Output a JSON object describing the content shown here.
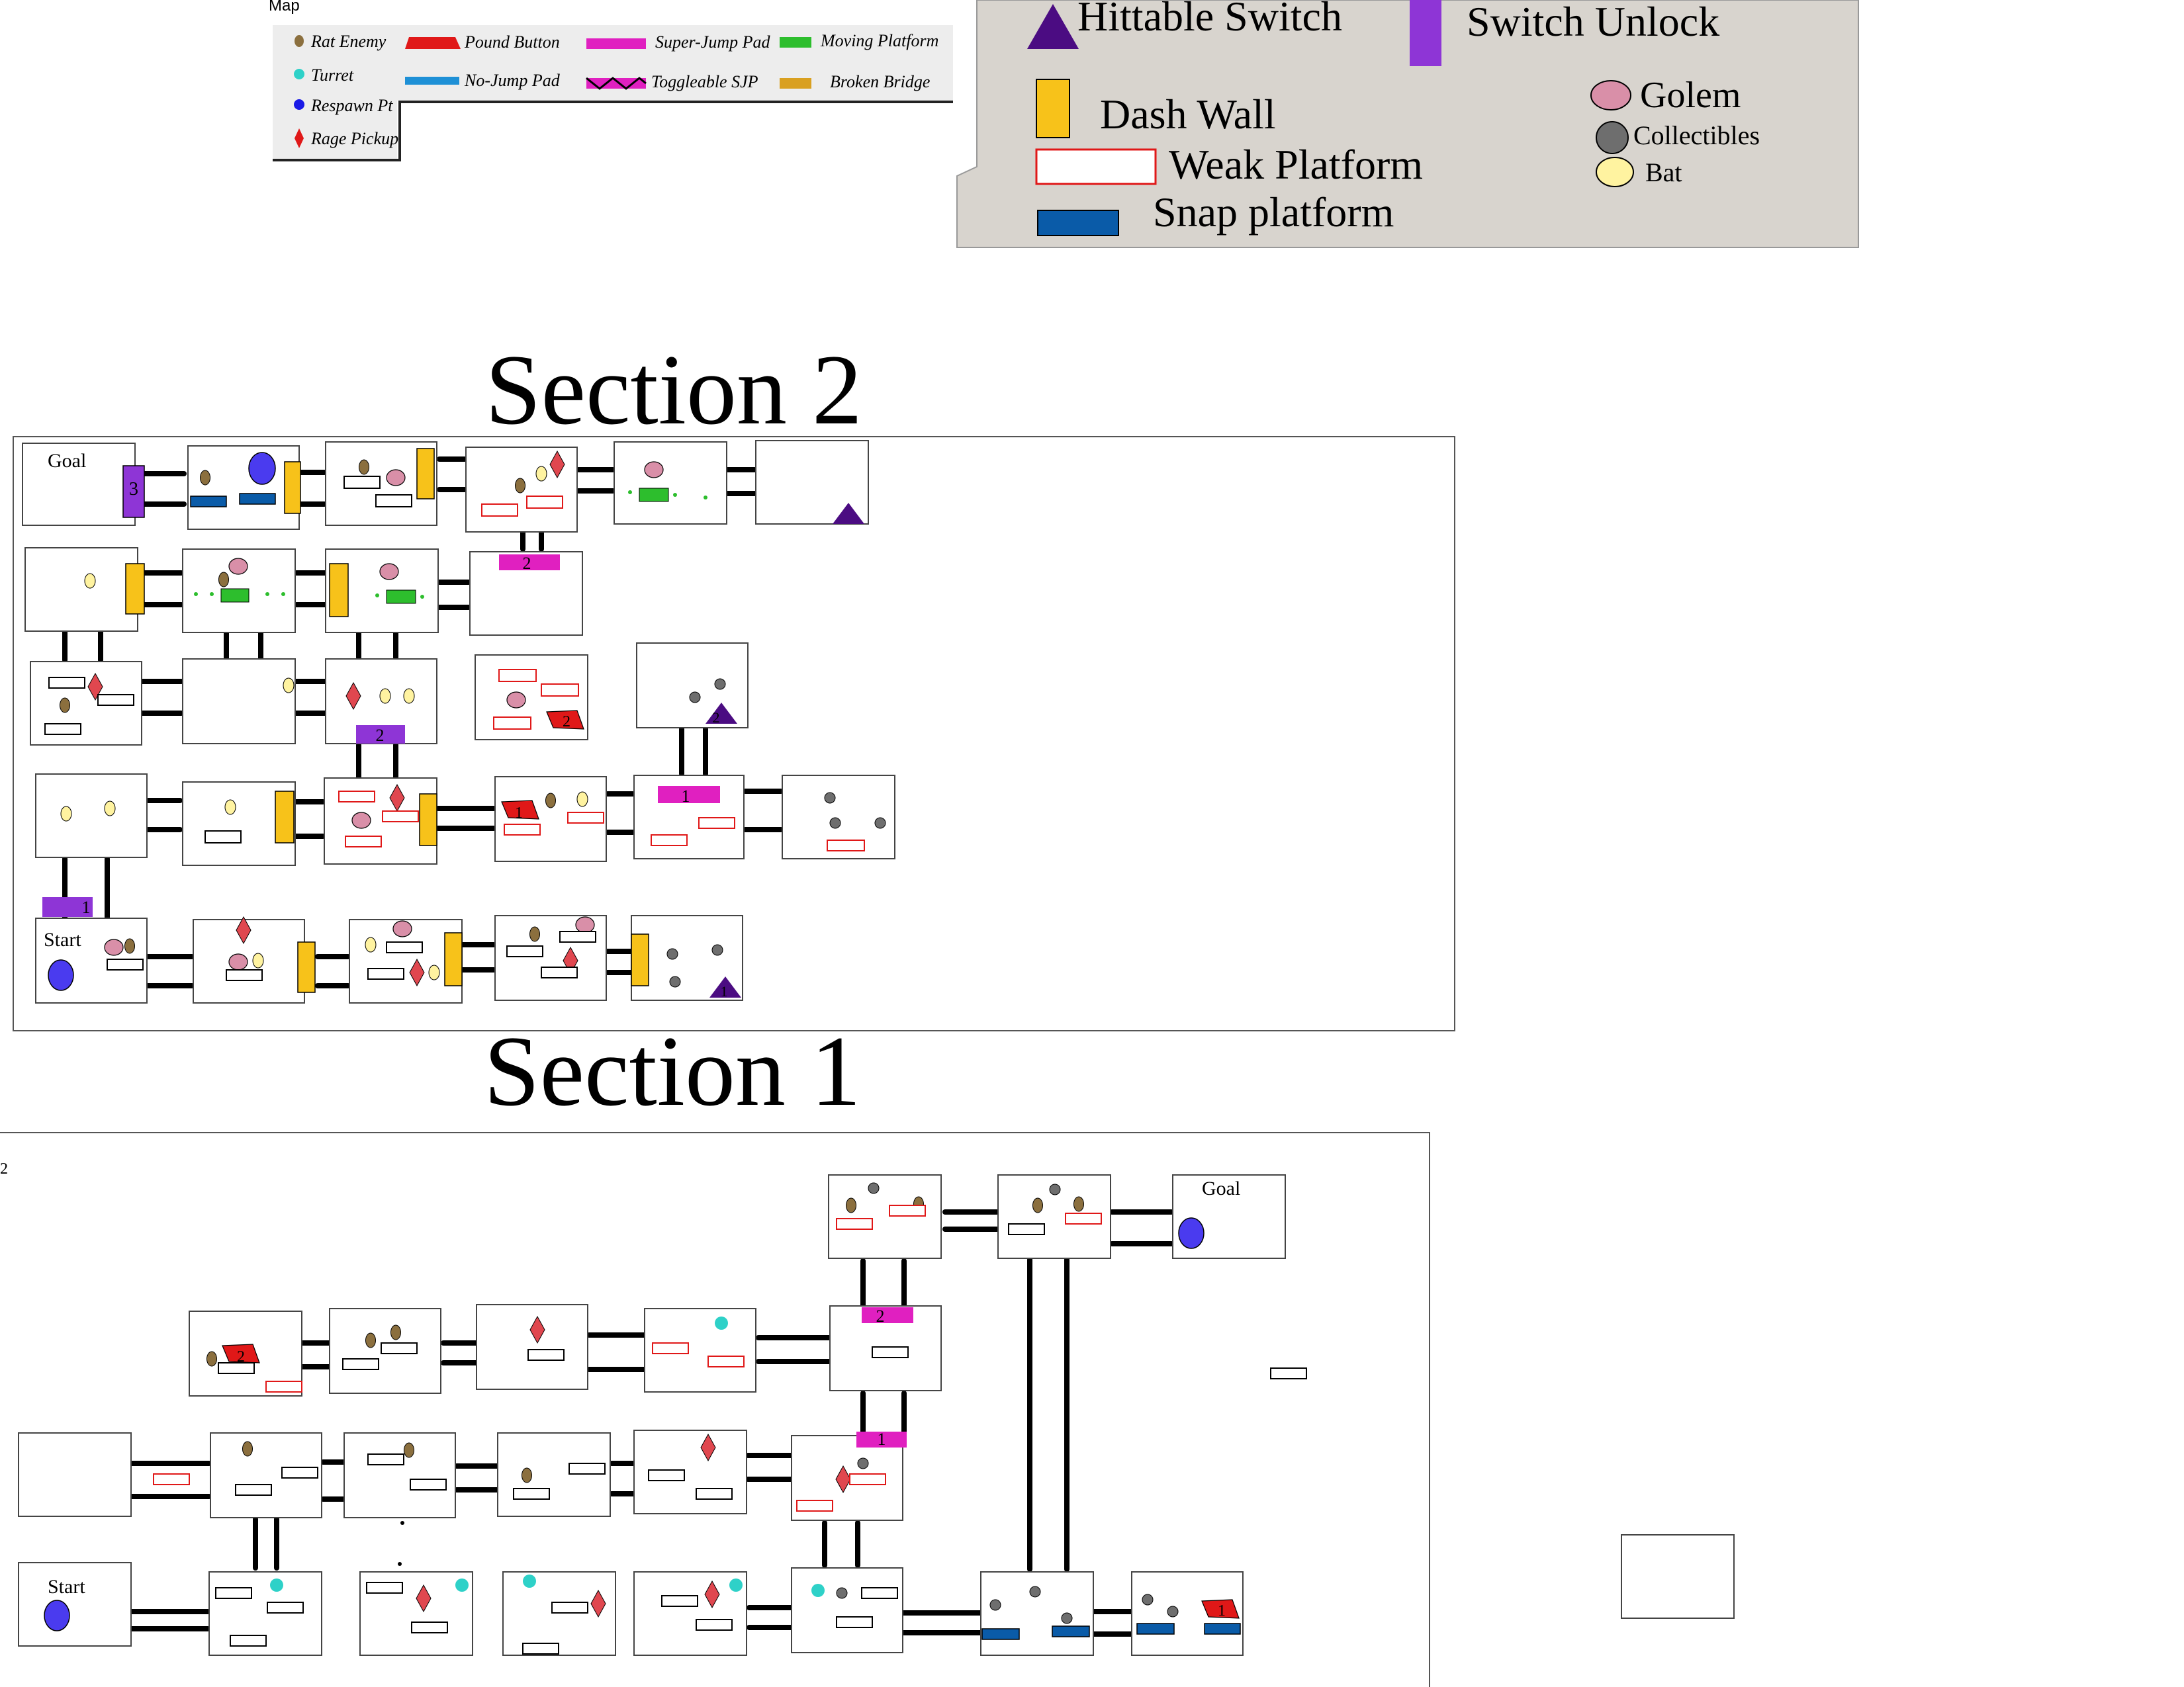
{
  "legend_small": {
    "title": "Map",
    "items": [
      {
        "label": "Rat Enemy",
        "icon": "rat-enemy-icon",
        "color": "#8B6F3E"
      },
      {
        "label": "Turret",
        "icon": "turret-icon",
        "color": "#2ED1C8"
      },
      {
        "label": "Respawn Pt",
        "icon": "respawn-point-icon",
        "color": "#1A1AE6"
      },
      {
        "label": "Rage Pickup",
        "icon": "rage-pickup-icon",
        "color": "#E01818"
      },
      {
        "label": "Pound Button",
        "icon": "pound-button-icon",
        "color": "#E01818"
      },
      {
        "label": "No-Jump Pad",
        "icon": "no-jump-pad-icon",
        "color": "#1E90D6"
      },
      {
        "label": "Super-Jump Pad",
        "icon": "super-jump-pad-icon",
        "color": "#E020C0"
      },
      {
        "label": "Toggleable SJP",
        "icon": "toggleable-sjp-icon",
        "color": "#E020C0"
      },
      {
        "label": "Moving Platform",
        "icon": "moving-platform-icon",
        "color": "#2DBE2D"
      },
      {
        "label": "Broken Bridge",
        "icon": "broken-bridge-icon",
        "color": "#D9A020"
      }
    ]
  },
  "legend_large": {
    "items": [
      {
        "label": "Hittable Switch",
        "icon": "hittable-switch-icon",
        "color": "#4B0C82"
      },
      {
        "label": "Switch Unlock",
        "icon": "switch-unlock-icon",
        "color": "#8E35D6"
      },
      {
        "label": "Dash Wall",
        "icon": "dash-wall-icon",
        "color": "#F7C21A"
      },
      {
        "label": "Weak Platform",
        "icon": "weak-platform-icon",
        "color": "#E01818"
      },
      {
        "label": "Snap platform",
        "icon": "snap-platform-icon",
        "color": "#0A5BA8"
      },
      {
        "label": "Golem",
        "icon": "golem-icon",
        "color": "#D98FA8"
      },
      {
        "label": "Collectibles",
        "icon": "collectible-icon",
        "color": "#6E6E6E"
      },
      {
        "label": "Bat",
        "icon": "bat-icon",
        "color": "#FFF3A0"
      }
    ]
  },
  "sections": {
    "section2_title": "Section 2",
    "section1_title": "Section 1",
    "goal_label": "Goal",
    "start_label": "Start",
    "marker_1": "1",
    "marker_2": "2",
    "marker_3": "3",
    "edge_mark": "2"
  },
  "colors": {
    "rat": "#8B6F3E",
    "turret": "#2ED1C8",
    "respawn": "#4A3BEF",
    "rage": "#E0474F",
    "golem": "#D98FA8",
    "bat": "#FFF3A0",
    "collectible": "#6E6E6E",
    "dash_wall": "#F7C21A",
    "switch_unlock": "#8E35D6",
    "hittable_switch": "#4B0C82",
    "snap": "#0A5BA8",
    "weak": "#E01818",
    "sjp": "#E020C0",
    "moving": "#2DBE2D",
    "pound": "#E01818"
  }
}
